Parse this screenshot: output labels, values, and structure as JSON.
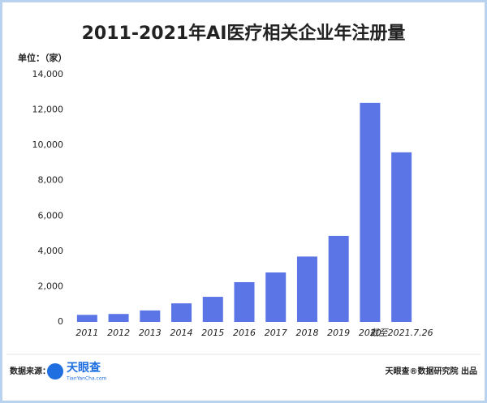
{
  "chart_data": {
    "type": "bar",
    "title": "2011-2021年AI医疗相关企业年注册量",
    "unit_label": "单位：（家）",
    "categories": [
      "2011",
      "2012",
      "2013",
      "2014",
      "2015",
      "2016",
      "2017",
      "2018",
      "2019",
      "2020",
      "截至2021.7.26"
    ],
    "values": [
      400,
      450,
      650,
      1050,
      1420,
      2250,
      2800,
      3700,
      4870,
      12400,
      9600
    ],
    "color": "#5b74e6",
    "ylim": [
      0,
      14000
    ],
    "yticks": [
      0,
      {
        "value": 2000,
        "label": "2,000"
      },
      {
        "value": 4000,
        "label": "4,000"
      },
      {
        "value": 6000,
        "label": "6,000"
      },
      {
        "value": 8000,
        "label": "8,000"
      },
      {
        "value": 10000,
        "label": "10,000"
      },
      {
        "value": 12000,
        "label": "12,000"
      },
      {
        "value": 14000,
        "label": "14,000"
      }
    ],
    "grid": false
  },
  "footer": {
    "source_label": "数据来源：",
    "logo_name": "天眼查",
    "logo_site": "TianYanCha.com",
    "credit": "天眼查®数据研究院 出品"
  }
}
